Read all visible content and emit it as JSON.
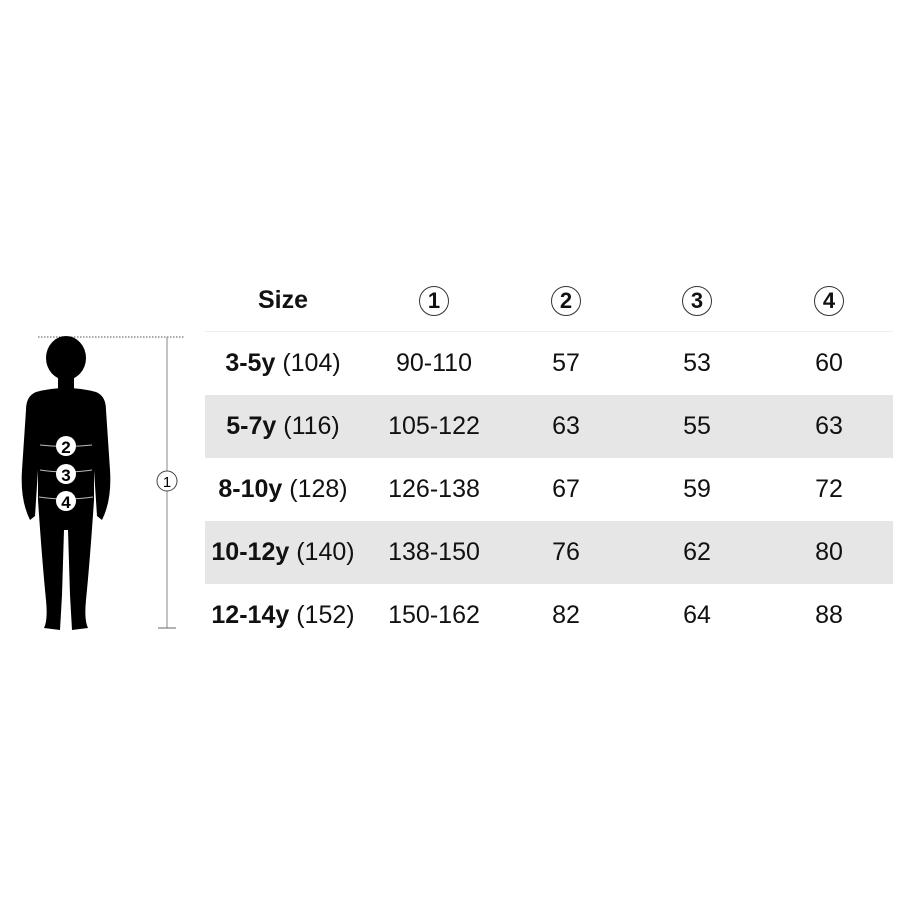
{
  "header": {
    "size_label": "Size",
    "columns": [
      "1",
      "2",
      "3",
      "4"
    ]
  },
  "figure": {
    "markers": [
      "2",
      "3",
      "4"
    ],
    "height_marker": "1"
  },
  "rows": [
    {
      "size": "3-5y",
      "height": "(104)",
      "values": [
        "90-110",
        "57",
        "53",
        "60"
      ]
    },
    {
      "size": "5-7y",
      "height": "(116)",
      "values": [
        "105-122",
        "63",
        "55",
        "63"
      ]
    },
    {
      "size": "8-10y",
      "height": "(128)",
      "values": [
        "126-138",
        "67",
        "59",
        "72"
      ]
    },
    {
      "size": "10-12y",
      "height": "(140)",
      "values": [
        "138-150",
        "76",
        "62",
        "80"
      ]
    },
    {
      "size": "12-14y",
      "height": "(152)",
      "values": [
        "150-162",
        "82",
        "64",
        "88"
      ]
    }
  ],
  "colors": {
    "stripe": "#e6e6e6",
    "text": "#111111"
  }
}
